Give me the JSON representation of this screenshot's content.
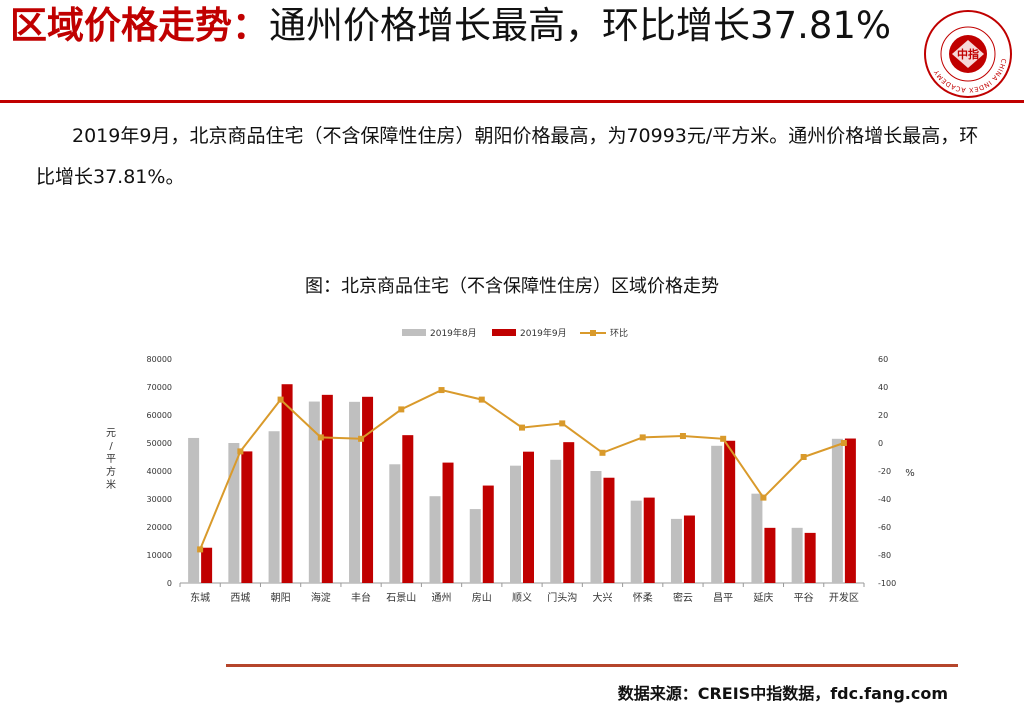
{
  "header": {
    "title_highlight": "区域价格走势",
    "title_sep": "：",
    "title_rest": "通州价格增长最高，环比增长37.81%",
    "logo_inner_text": "中指",
    "logo_ring_text": "CHINA INDEX ACADEMY"
  },
  "summary": "2019年9月，北京商品住宅（不含保障性住房）朝阳价格最高，为70993元/平方米。通州价格增长最高，环比增长37.81%。",
  "footer": {
    "source": "数据来源：CREIS中指数据，fdc.fang.com"
  },
  "chart_data": {
    "type": "bar",
    "title": "图：北京商品住宅（不含保障性住房）区域价格走势",
    "ylabel": "元/平方米",
    "y2label": "%",
    "ylim": [
      0,
      80000
    ],
    "y2lim": [
      -100,
      60
    ],
    "yticks": [
      0,
      10000,
      20000,
      30000,
      40000,
      50000,
      60000,
      70000,
      80000
    ],
    "y2ticks": [
      -100,
      -80,
      -60,
      -40,
      -20,
      0,
      20,
      40,
      60
    ],
    "legend_position": "top",
    "categories": [
      "东城",
      "西城",
      "朝阳",
      "海淀",
      "丰台",
      "石景山",
      "通州",
      "房山",
      "顺义",
      "门头沟",
      "大兴",
      "怀柔",
      "密云",
      "昌平",
      "延庆",
      "平谷",
      "开发区"
    ],
    "series": [
      {
        "name": "2019年8月",
        "kind": "bar",
        "axis": "left",
        "color": "#bfbfbf",
        "values": [
          51800,
          50000,
          54200,
          64800,
          64700,
          42400,
          31000,
          26400,
          41900,
          44000,
          40000,
          29400,
          22900,
          49000,
          31900,
          19700,
          51500
        ]
      },
      {
        "name": "2019年9月",
        "kind": "bar",
        "axis": "left",
        "color": "#c00000",
        "values": [
          12600,
          47000,
          70993,
          67200,
          66500,
          52800,
          43000,
          34800,
          46900,
          50300,
          37600,
          30500,
          24100,
          50800,
          19700,
          17900,
          51600
        ]
      },
      {
        "name": "环比",
        "kind": "line",
        "axis": "right",
        "color": "#d99a2b",
        "values": [
          -76,
          -6,
          31,
          4,
          3,
          24,
          37.81,
          31,
          11,
          14,
          -7,
          4,
          5,
          3,
          -39,
          -10,
          0
        ]
      }
    ]
  }
}
